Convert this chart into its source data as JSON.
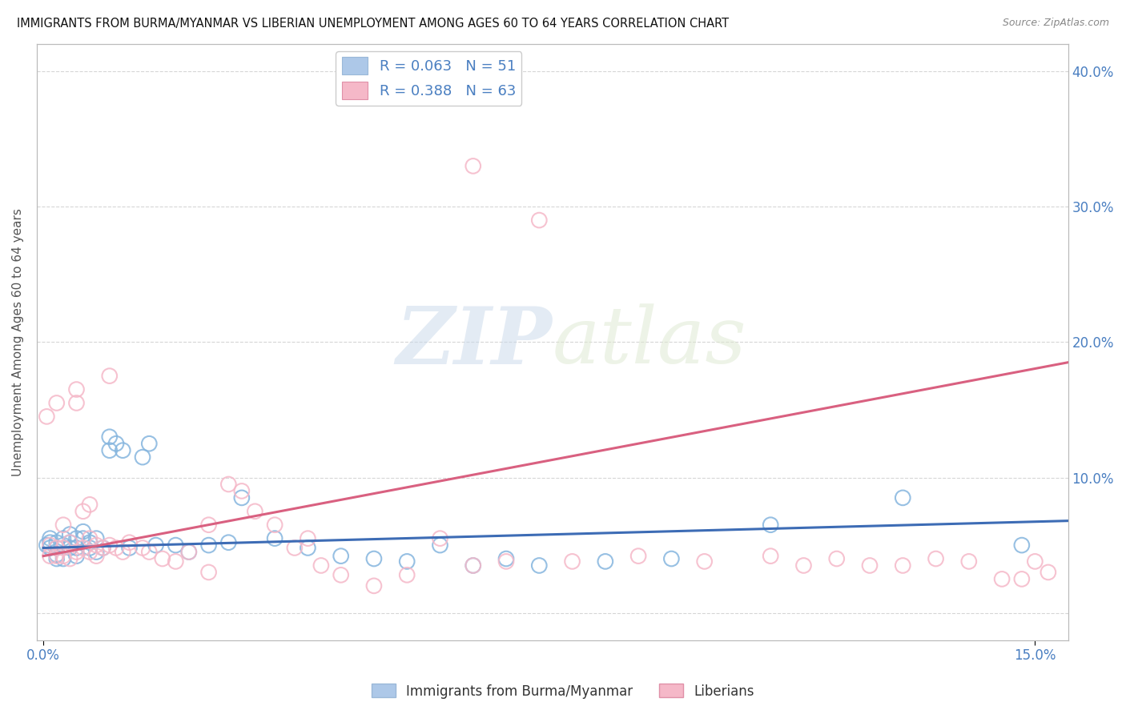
{
  "title": "IMMIGRANTS FROM BURMA/MYANMAR VS LIBERIAN UNEMPLOYMENT AMONG AGES 60 TO 64 YEARS CORRELATION CHART",
  "source": "Source: ZipAtlas.com",
  "ylabel": "Unemployment Among Ages 60 to 64 years",
  "xlim": [
    -0.001,
    0.155
  ],
  "ylim": [
    -0.02,
    0.42
  ],
  "xtick_positions": [
    0.0,
    0.15
  ],
  "xticklabels": [
    "0.0%",
    "15.0%"
  ],
  "ytick_positions": [
    0.0,
    0.1,
    0.2,
    0.3,
    0.4
  ],
  "yticklabels_right": [
    "",
    "10.0%",
    "20.0%",
    "30.0%",
    "40.0%"
  ],
  "watermark_zip": "ZIP",
  "watermark_atlas": "atlas",
  "legend_items": [
    {
      "label": "R = 0.063   N = 51",
      "color": "#adc8e8"
    },
    {
      "label": "R = 0.388   N = 63",
      "color": "#f5b8c8"
    }
  ],
  "series": [
    {
      "name": "Immigrants from Burma/Myanmar",
      "scatter_color": "#85b5de",
      "scatter_edge": "#85b5de",
      "line_color": "#3d6cb5",
      "line_x": [
        0.0,
        0.155
      ],
      "line_y": [
        0.048,
        0.068
      ],
      "points_x": [
        0.0005,
        0.001,
        0.001,
        0.001,
        0.002,
        0.002,
        0.002,
        0.002,
        0.003,
        0.003,
        0.003,
        0.004,
        0.004,
        0.004,
        0.005,
        0.005,
        0.005,
        0.006,
        0.006,
        0.007,
        0.007,
        0.008,
        0.008,
        0.009,
        0.01,
        0.01,
        0.011,
        0.012,
        0.013,
        0.015,
        0.016,
        0.017,
        0.02,
        0.022,
        0.025,
        0.028,
        0.03,
        0.035,
        0.04,
        0.045,
        0.05,
        0.055,
        0.06,
        0.065,
        0.07,
        0.075,
        0.085,
        0.095,
        0.11,
        0.13,
        0.148
      ],
      "points_y": [
        0.05,
        0.048,
        0.052,
        0.055,
        0.043,
        0.048,
        0.052,
        0.04,
        0.055,
        0.05,
        0.04,
        0.048,
        0.052,
        0.058,
        0.042,
        0.048,
        0.055,
        0.055,
        0.06,
        0.048,
        0.052,
        0.045,
        0.055,
        0.048,
        0.12,
        0.13,
        0.125,
        0.12,
        0.048,
        0.115,
        0.125,
        0.05,
        0.05,
        0.045,
        0.05,
        0.052,
        0.085,
        0.055,
        0.048,
        0.042,
        0.04,
        0.038,
        0.05,
        0.035,
        0.04,
        0.035,
        0.038,
        0.04,
        0.065,
        0.085,
        0.05
      ]
    },
    {
      "name": "Liberians",
      "scatter_color": "#f5b8c8",
      "scatter_edge": "#f5b8c8",
      "line_color": "#d96080",
      "line_x": [
        0.0,
        0.155
      ],
      "line_y": [
        0.042,
        0.185
      ],
      "points_x": [
        0.0005,
        0.001,
        0.001,
        0.002,
        0.002,
        0.002,
        0.003,
        0.003,
        0.003,
        0.004,
        0.004,
        0.005,
        0.005,
        0.005,
        0.006,
        0.006,
        0.007,
        0.007,
        0.007,
        0.008,
        0.008,
        0.009,
        0.01,
        0.01,
        0.011,
        0.012,
        0.013,
        0.015,
        0.016,
        0.018,
        0.02,
        0.022,
        0.025,
        0.025,
        0.028,
        0.03,
        0.032,
        0.035,
        0.038,
        0.04,
        0.042,
        0.045,
        0.05,
        0.055,
        0.06,
        0.065,
        0.065,
        0.07,
        0.075,
        0.08,
        0.09,
        0.1,
        0.11,
        0.115,
        0.12,
        0.125,
        0.13,
        0.135,
        0.14,
        0.145,
        0.148,
        0.15,
        0.152
      ],
      "points_y": [
        0.145,
        0.05,
        0.042,
        0.155,
        0.042,
        0.048,
        0.065,
        0.042,
        0.048,
        0.052,
        0.04,
        0.165,
        0.155,
        0.045,
        0.048,
        0.075,
        0.055,
        0.08,
        0.045,
        0.05,
        0.042,
        0.048,
        0.175,
        0.05,
        0.048,
        0.045,
        0.052,
        0.048,
        0.045,
        0.04,
        0.038,
        0.045,
        0.065,
        0.03,
        0.095,
        0.09,
        0.075,
        0.065,
        0.048,
        0.055,
        0.035,
        0.028,
        0.02,
        0.028,
        0.055,
        0.33,
        0.035,
        0.038,
        0.29,
        0.038,
        0.042,
        0.038,
        0.042,
        0.035,
        0.04,
        0.035,
        0.035,
        0.04,
        0.038,
        0.025,
        0.025,
        0.038,
        0.03
      ]
    }
  ],
  "background_color": "#ffffff",
  "grid_color": "#cccccc",
  "title_color": "#111111",
  "axis_label_color": "#555555",
  "tick_label_color": "#4a7fc1",
  "legend_text_color": "#4a7fc1"
}
